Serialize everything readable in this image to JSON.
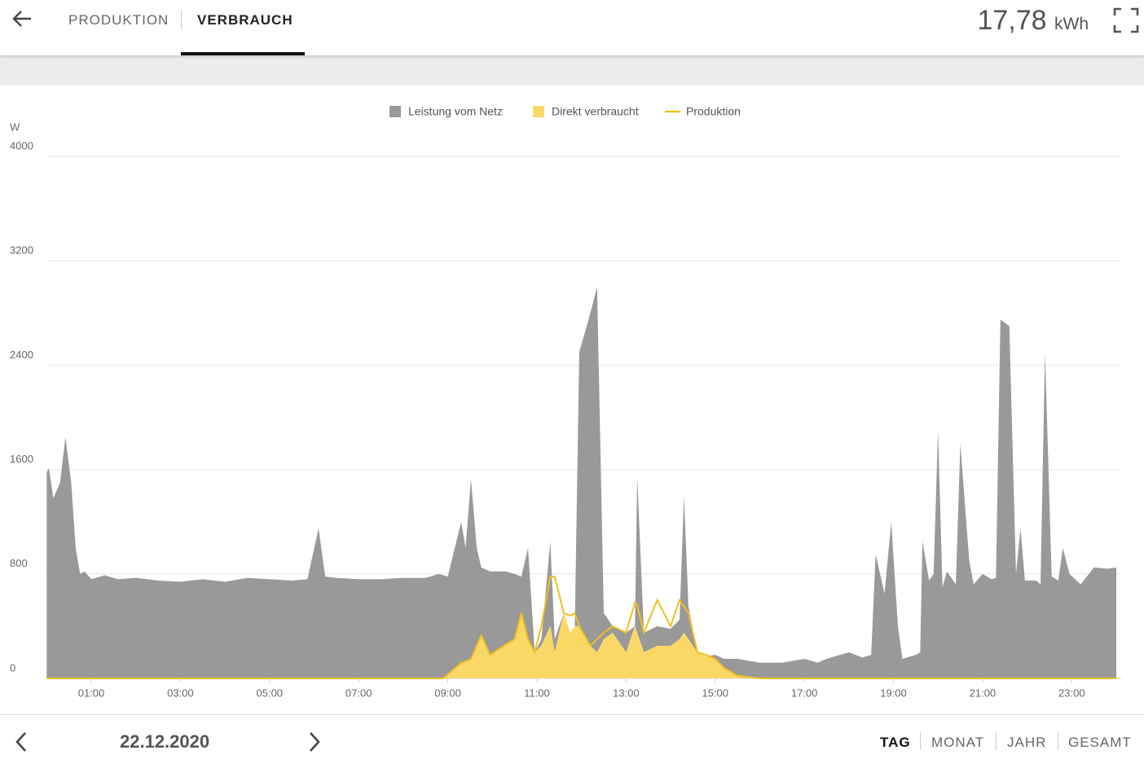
{
  "header": {
    "tabs": [
      "PRODUKTION",
      "VERBRAUCH"
    ],
    "total": "17,78",
    "unit": "kWh"
  },
  "chart_data": {
    "type": "area",
    "ylabel": "W",
    "stacked": true,
    "grid": true,
    "legend": "top",
    "x": [
      0,
      0.05,
      0.15,
      0.3,
      0.42,
      0.55,
      0.65,
      0.75,
      0.85,
      1,
      1.3,
      1.6,
      2,
      2.5,
      3,
      3.5,
      4,
      4.5,
      5,
      5.5,
      5.85,
      6.1,
      6.25,
      6.5,
      7,
      7.5,
      8,
      8.5,
      8.8,
      8.9,
      9,
      9.3,
      9.4,
      9.52,
      9.65,
      9.75,
      9.95,
      10.3,
      10.5,
      10.65,
      10.8,
      10.95,
      11.1,
      11.3,
      11.4,
      11.6,
      11.75,
      11.85,
      11.95,
      12.2,
      12.35,
      12.5,
      12.7,
      13,
      13.2,
      13.25,
      13.4,
      13.7,
      14,
      14.2,
      14.3,
      14.4,
      14.6,
      14.8,
      15,
      15.2,
      15.5,
      16,
      16.5,
      17,
      17.3,
      17.5,
      18,
      18.3,
      18.5,
      18.6,
      18.8,
      18.95,
      19.1,
      19.2,
      19.5,
      19.6,
      19.65,
      19.8,
      19.9,
      20,
      20.1,
      20.2,
      20.4,
      20.5,
      20.7,
      20.8,
      21,
      21.2,
      21.3,
      21.4,
      21.6,
      21.75,
      21.85,
      21.95,
      22.2,
      22.3,
      22.4,
      22.55,
      22.7,
      22.8,
      22.95,
      23.2,
      23.5,
      23.8,
      24
    ],
    "xlim": [
      0,
      24
    ],
    "xticks": [
      {
        "value": 1,
        "label": "01:00"
      },
      {
        "value": 3,
        "label": "03:00"
      },
      {
        "value": 5,
        "label": "05:00"
      },
      {
        "value": 7,
        "label": "07:00"
      },
      {
        "value": 9,
        "label": "09:00"
      },
      {
        "value": 11,
        "label": "11:00"
      },
      {
        "value": 13,
        "label": "13:00"
      },
      {
        "value": 15,
        "label": "15:00"
      },
      {
        "value": 17,
        "label": "17:00"
      },
      {
        "value": 19,
        "label": "19:00"
      },
      {
        "value": 21,
        "label": "21:00"
      },
      {
        "value": 23,
        "label": "23:00"
      }
    ],
    "ylim": [
      0,
      4000
    ],
    "yticks": [
      0,
      800,
      1600,
      2400,
      3200,
      4000
    ],
    "series": [
      {
        "name": "Leistung vom Netz",
        "color": "#999999",
        "kind": "area",
        "values": [
          1580,
          1610,
          1380,
          1500,
          1850,
          1500,
          1000,
          800,
          820,
          760,
          790,
          760,
          770,
          750,
          740,
          760,
          740,
          770,
          760,
          750,
          760,
          1150,
          780,
          770,
          760,
          760,
          770,
          770,
          800,
          790,
          750,
          1080,
          870,
          1380,
          750,
          520,
          640,
          560,
          500,
          280,
          700,
          0,
          50,
          650,
          100,
          0,
          0,
          0,
          2100,
          2550,
          2800,
          200,
          50,
          150,
          0,
          1200,
          150,
          150,
          130,
          150,
          1050,
          250,
          0,
          0,
          30,
          70,
          130,
          120,
          120,
          150,
          120,
          150,
          200,
          160,
          180,
          950,
          650,
          1200,
          400,
          150,
          180,
          200,
          1050,
          750,
          800,
          1900,
          700,
          820,
          720,
          1800,
          900,
          720,
          800,
          760,
          770,
          2750,
          2700,
          800,
          1150,
          750,
          750,
          720,
          2500,
          780,
          750,
          1000,
          800,
          720,
          850,
          840,
          850
        ]
      },
      {
        "name": "Direkt verbraucht",
        "color": "#f9d867",
        "kind": "area",
        "values": [
          0,
          0,
          0,
          0,
          0,
          0,
          0,
          0,
          0,
          0,
          0,
          0,
          0,
          0,
          0,
          0,
          0,
          0,
          0,
          0,
          0,
          0,
          0,
          0,
          0,
          0,
          0,
          0,
          0,
          0,
          30,
          120,
          130,
          150,
          250,
          330,
          180,
          260,
          300,
          500,
          300,
          200,
          250,
          400,
          200,
          500,
          350,
          400,
          400,
          250,
          200,
          300,
          350,
          200,
          400,
          350,
          200,
          250,
          250,
          300,
          350,
          300,
          200,
          170,
          150,
          80,
          20,
          0,
          0,
          0,
          0,
          0,
          0,
          0,
          0,
          0,
          0,
          0,
          0,
          0,
          0,
          0,
          0,
          0,
          0,
          0,
          0,
          0,
          0,
          0,
          0,
          0,
          0,
          0,
          0,
          0,
          0,
          0,
          0,
          0,
          0,
          0,
          0,
          0,
          0,
          0,
          0,
          0,
          0,
          0,
          0
        ]
      },
      {
        "name": "Produktion",
        "color": "#f0c020",
        "kind": "line",
        "values": [
          0,
          0,
          0,
          0,
          0,
          0,
          0,
          0,
          0,
          0,
          0,
          0,
          0,
          0,
          0,
          0,
          0,
          0,
          0,
          0,
          0,
          0,
          0,
          0,
          0,
          0,
          0,
          0,
          0,
          0,
          30,
          120,
          130,
          150,
          250,
          330,
          180,
          260,
          300,
          500,
          300,
          200,
          400,
          780,
          780,
          500,
          480,
          500,
          400,
          250,
          300,
          350,
          400,
          350,
          580,
          560,
          350,
          600,
          400,
          600,
          550,
          500,
          200,
          180,
          150,
          80,
          20,
          0,
          0,
          0,
          0,
          0,
          0,
          0,
          0,
          0,
          0,
          0,
          0,
          0,
          0,
          0,
          0,
          0,
          0,
          0,
          0,
          0,
          0,
          0,
          0,
          0,
          0,
          0,
          0,
          0,
          0,
          0,
          0,
          0,
          0,
          0,
          0,
          0,
          0,
          0,
          0,
          0,
          0,
          0,
          0
        ]
      }
    ]
  },
  "footer": {
    "date": "22.12.2020",
    "periods": [
      "TAG",
      "MONAT",
      "JAHR",
      "GESAMT"
    ]
  }
}
